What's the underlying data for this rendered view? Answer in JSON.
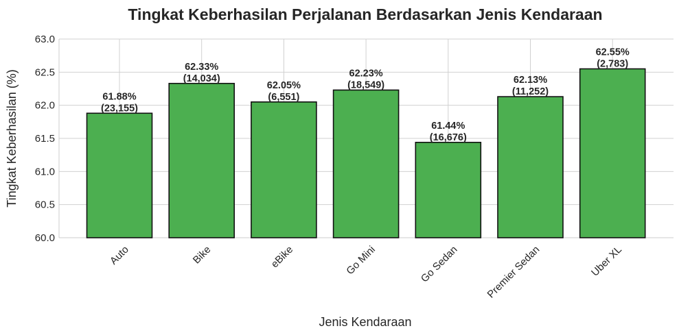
{
  "chart_data": {
    "type": "bar",
    "title": "Tingkat Keberhasilan Perjalanan Berdasarkan Jenis Kendaraan",
    "xlabel": "Jenis Kendaraan",
    "ylabel": "Tingkat Keberhasilan (%)",
    "ylim": [
      60.0,
      63.0
    ],
    "yticks": [
      "60.0",
      "60.5",
      "61.0",
      "61.5",
      "62.0",
      "62.5",
      "63.0"
    ],
    "grid": true,
    "bar_color": "#4caf50",
    "categories": [
      "Auto",
      "Bike",
      "eBike",
      "Go Mini",
      "Go Sedan",
      "Premier Sedan",
      "Uber XL"
    ],
    "values": [
      61.88,
      62.33,
      62.05,
      62.23,
      61.44,
      62.13,
      62.55
    ],
    "labels_pct": [
      "61.88%",
      "62.33%",
      "62.05%",
      "62.23%",
      "61.44%",
      "62.13%",
      "62.55%"
    ],
    "labels_count": [
      "(23,155)",
      "(14,034)",
      "(6,551)",
      "(18,549)",
      "(16,676)",
      "(11,252)",
      "(2,783)"
    ]
  }
}
